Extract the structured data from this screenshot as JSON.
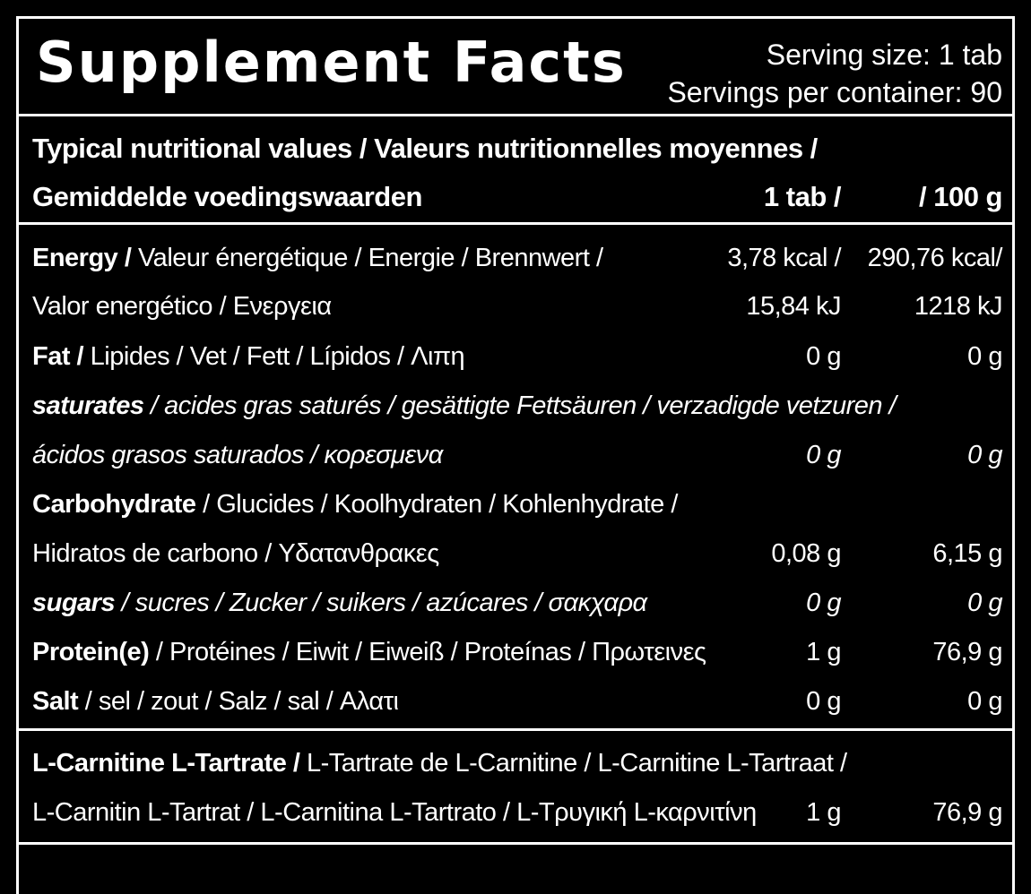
{
  "header": {
    "title": "Supplement Facts",
    "serving_size": "Serving size: 1 tab",
    "servings_per_container": "Servings per container: 90"
  },
  "columns": {
    "heading_line1": "Typical nutritional values  / Valeurs nutritionnelles moyennes /",
    "heading_line2": "Gemiddelde voedingswaarden",
    "col1": "1 tab /",
    "col2": "/ 100 g"
  },
  "nutrients": {
    "energy": {
      "label_bold": "Energy /",
      "label_rest": " Valeur énergétique / Energie / Brennwert /",
      "label_line2": "Valor energético / Ενεργεια",
      "kcal_tab": "3,78 kcal /",
      "kcal_100g": "290,76 kcal/",
      "kj_tab": "15,84 kJ",
      "kj_100g": "1218 kJ"
    },
    "fat": {
      "label_bold": "Fat /",
      "label_rest": " Lipides / Vet / Fett / Lípidos / Λιπη",
      "tab": "0 g",
      "per100g": "0 g"
    },
    "saturates": {
      "label_bold": "saturates",
      "label_rest": " / acides gras saturés / gesättigte Fettsäuren / verzadigde vetzuren /",
      "label_line2": "ácidos grasos saturados /  κορεσμενα",
      "tab": "0 g",
      "per100g": "0 g"
    },
    "carbohydrate": {
      "label_bold": "Carbohydrate",
      "label_rest": " / Glucides / Koolhydraten / Kohlenhydrate /",
      "label_line2": "Hidratos de carbono / Υδατανθρακες",
      "tab": "0,08 g",
      "per100g": "6,15 g"
    },
    "sugars": {
      "label_bold": "sugars",
      "label_rest": " /  sucres / Zucker / suikers / azúcares / σακχαρα",
      "tab": "0 g",
      "per100g": "0 g"
    },
    "protein": {
      "label_bold": "Protein(e)",
      "label_rest": " / Protéines / Eiwit / Eiweiß / Proteínas /  Πρωτεινες",
      "tab": "1 g",
      "per100g": "76,9 g"
    },
    "salt": {
      "label_bold": "Salt",
      "label_rest": " / sel / zout / Salz / sal / Αλατι",
      "tab": "0 g",
      "per100g": "0 g"
    }
  },
  "ingredient": {
    "label_bold": "L-Carnitine L-Tartrate /",
    "label_rest": " L-Tartrate de L-Carnitine / L-Carnitine L-Tartraat /",
    "label_line2": "L-Carnitin L-Tartrat / L-Carnitina L-Tartrato / L-Τρυγική L-καρνιτίνη",
    "tab": "1 g",
    "per100g": "76,9 g"
  }
}
